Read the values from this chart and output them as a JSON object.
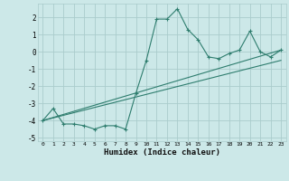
{
  "title": "",
  "xlabel": "Humidex (Indice chaleur)",
  "ylabel": "",
  "bg_color": "#cce8e8",
  "grid_color": "#aacccc",
  "line_color": "#2e7d6e",
  "xlim": [
    -0.5,
    23.5
  ],
  "ylim": [
    -5.2,
    2.8
  ],
  "yticks": [
    -5,
    -4,
    -3,
    -2,
    -1,
    0,
    1,
    2
  ],
  "xticks": [
    0,
    1,
    2,
    3,
    4,
    5,
    6,
    7,
    8,
    9,
    10,
    11,
    12,
    13,
    14,
    15,
    16,
    17,
    18,
    19,
    20,
    21,
    22,
    23
  ],
  "line1_x": [
    0,
    1,
    2,
    3,
    4,
    5,
    6,
    7,
    8,
    9,
    10,
    11,
    12,
    13,
    14,
    15,
    16,
    17,
    18,
    19,
    20,
    21,
    22,
    23
  ],
  "line1_y": [
    -4.0,
    -3.3,
    -4.2,
    -4.2,
    -4.3,
    -4.5,
    -4.3,
    -4.3,
    -4.5,
    -2.4,
    -0.5,
    1.9,
    1.9,
    2.5,
    1.3,
    0.7,
    -0.3,
    -0.4,
    -0.1,
    0.1,
    1.2,
    0.0,
    -0.3,
    0.1
  ],
  "line2_x": [
    0,
    23
  ],
  "line2_y": [
    -4.0,
    0.1
  ],
  "line3_x": [
    0,
    23
  ],
  "line3_y": [
    -4.0,
    -0.5
  ]
}
